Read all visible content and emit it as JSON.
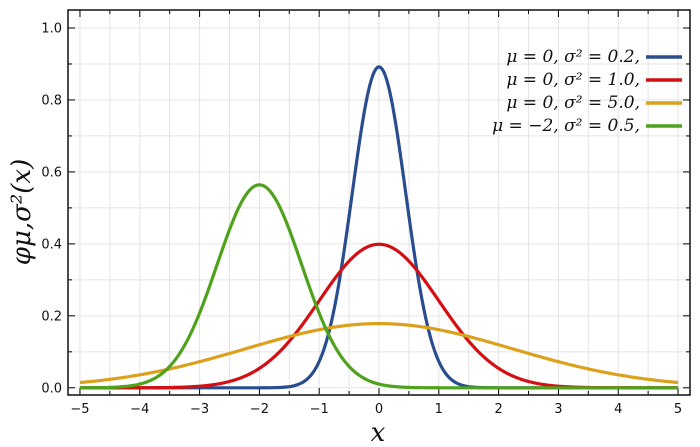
{
  "chart_data": {
    "type": "line",
    "title": "",
    "xlabel": "x",
    "ylabel": "φμ,σ²(x)",
    "xlim": [
      -5.2,
      5.2
    ],
    "ylim": [
      -0.02,
      1.05
    ],
    "x_ticks": [
      -5,
      -4,
      -3,
      -2,
      -1,
      0,
      1,
      2,
      3,
      4,
      5
    ],
    "x_tick_labels": [
      "−5",
      "−4",
      "−3",
      "−2",
      "−1",
      "0",
      "1",
      "2",
      "3",
      "4",
      "5"
    ],
    "y_ticks": [
      0.0,
      0.2,
      0.4,
      0.6,
      0.8,
      1.0
    ],
    "y_tick_labels": [
      "0.0",
      "0.2",
      "0.4",
      "0.6",
      "0.8",
      "1.0"
    ],
    "grid": true,
    "legend_position": "top-right",
    "x_range": [
      -5,
      5
    ],
    "series": [
      {
        "name": "μ = 0,   σ² = 0.2,",
        "mu": 0,
        "variance": 0.2,
        "color": "#2a4d8f"
      },
      {
        "name": "μ = 0,   σ² = 1.0,",
        "mu": 0,
        "variance": 1.0,
        "color": "#d40f14"
      },
      {
        "name": "μ = 0,   σ² = 5.0,",
        "mu": 0,
        "variance": 5.0,
        "color": "#dba11c"
      },
      {
        "name": "μ = −2,  σ² = 0.5,",
        "mu": -2,
        "variance": 0.5,
        "color": "#4ea21c"
      }
    ]
  }
}
